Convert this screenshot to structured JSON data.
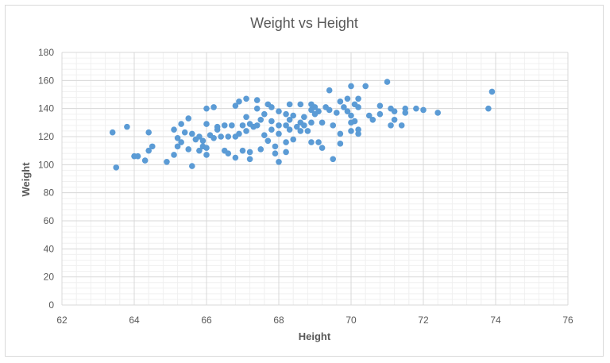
{
  "chart_data": {
    "type": "scatter",
    "title": "Weight vs Height",
    "xlabel": "Height",
    "ylabel": "Weight",
    "xlim": [
      62,
      76
    ],
    "ylim": [
      0,
      180
    ],
    "x_ticks": [
      62,
      64,
      66,
      68,
      70,
      72,
      74,
      76
    ],
    "y_ticks": [
      0,
      20,
      40,
      60,
      80,
      100,
      120,
      140,
      160,
      180
    ],
    "grid": "major and minor",
    "legend": "none",
    "marker_color": "#5b9bd5",
    "points": [
      [
        63.4,
        123
      ],
      [
        63.5,
        98
      ],
      [
        63.8,
        127
      ],
      [
        64.0,
        106
      ],
      [
        64.1,
        106
      ],
      [
        64.3,
        103
      ],
      [
        64.4,
        110
      ],
      [
        64.4,
        123
      ],
      [
        64.5,
        113
      ],
      [
        64.9,
        102
      ],
      [
        65.1,
        125
      ],
      [
        65.1,
        107
      ],
      [
        65.2,
        113
      ],
      [
        65.2,
        119
      ],
      [
        65.3,
        129
      ],
      [
        65.3,
        116
      ],
      [
        65.4,
        123
      ],
      [
        65.5,
        133
      ],
      [
        65.5,
        111
      ],
      [
        65.6,
        99
      ],
      [
        65.6,
        122
      ],
      [
        65.7,
        118
      ],
      [
        65.8,
        120
      ],
      [
        65.8,
        110
      ],
      [
        65.9,
        117
      ],
      [
        65.9,
        113
      ],
      [
        66.0,
        140
      ],
      [
        66.0,
        129
      ],
      [
        66.0,
        107
      ],
      [
        66.0,
        112
      ],
      [
        66.1,
        121
      ],
      [
        66.2,
        141
      ],
      [
        66.2,
        119
      ],
      [
        66.3,
        127
      ],
      [
        66.3,
        125
      ],
      [
        66.4,
        120
      ],
      [
        66.5,
        128
      ],
      [
        66.5,
        110
      ],
      [
        66.6,
        108
      ],
      [
        66.6,
        120
      ],
      [
        66.7,
        128
      ],
      [
        66.8,
        142
      ],
      [
        66.8,
        120
      ],
      [
        66.8,
        105
      ],
      [
        66.9,
        145
      ],
      [
        66.9,
        122
      ],
      [
        67.0,
        128
      ],
      [
        67.0,
        110
      ],
      [
        67.1,
        147
      ],
      [
        67.1,
        134
      ],
      [
        67.1,
        124
      ],
      [
        67.2,
        129
      ],
      [
        67.2,
        109
      ],
      [
        67.2,
        104
      ],
      [
        67.3,
        127
      ],
      [
        67.4,
        146
      ],
      [
        67.4,
        140
      ],
      [
        67.4,
        128
      ],
      [
        67.5,
        132
      ],
      [
        67.5,
        111
      ],
      [
        67.6,
        136
      ],
      [
        67.6,
        121
      ],
      [
        67.7,
        143
      ],
      [
        67.7,
        117
      ],
      [
        67.8,
        141
      ],
      [
        67.8,
        131
      ],
      [
        67.8,
        125
      ],
      [
        67.9,
        113
      ],
      [
        67.9,
        108
      ],
      [
        68.0,
        138
      ],
      [
        68.0,
        128
      ],
      [
        68.0,
        122
      ],
      [
        68.0,
        102
      ],
      [
        68.2,
        136
      ],
      [
        68.2,
        128
      ],
      [
        68.2,
        116
      ],
      [
        68.2,
        109
      ],
      [
        68.3,
        143
      ],
      [
        68.3,
        132
      ],
      [
        68.3,
        125
      ],
      [
        68.4,
        135
      ],
      [
        68.4,
        118
      ],
      [
        68.5,
        127
      ],
      [
        68.6,
        143
      ],
      [
        68.6,
        130
      ],
      [
        68.6,
        124
      ],
      [
        68.7,
        134
      ],
      [
        68.7,
        128
      ],
      [
        68.8,
        124
      ],
      [
        68.9,
        143
      ],
      [
        68.9,
        139
      ],
      [
        68.9,
        130
      ],
      [
        68.9,
        116
      ],
      [
        69.0,
        141
      ],
      [
        69.0,
        136
      ],
      [
        69.1,
        138
      ],
      [
        69.1,
        116
      ],
      [
        69.2,
        130
      ],
      [
        69.2,
        112
      ],
      [
        69.3,
        141
      ],
      [
        69.4,
        153
      ],
      [
        69.4,
        139
      ],
      [
        69.5,
        128
      ],
      [
        69.5,
        104
      ],
      [
        69.6,
        137
      ],
      [
        69.7,
        145
      ],
      [
        69.7,
        122
      ],
      [
        69.7,
        115
      ],
      [
        69.8,
        141
      ],
      [
        69.9,
        147
      ],
      [
        69.9,
        138
      ],
      [
        70.0,
        156
      ],
      [
        70.0,
        135
      ],
      [
        70.0,
        130
      ],
      [
        70.0,
        124
      ],
      [
        70.1,
        143
      ],
      [
        70.1,
        131
      ],
      [
        70.2,
        147
      ],
      [
        70.2,
        141
      ],
      [
        70.2,
        125
      ],
      [
        70.2,
        122
      ],
      [
        70.4,
        156
      ],
      [
        70.5,
        135
      ],
      [
        70.6,
        132
      ],
      [
        70.8,
        142
      ],
      [
        70.8,
        136
      ],
      [
        71.0,
        159
      ],
      [
        71.1,
        140
      ],
      [
        71.1,
        128
      ],
      [
        71.2,
        138
      ],
      [
        71.2,
        132
      ],
      [
        71.4,
        128
      ],
      [
        71.5,
        140
      ],
      [
        71.5,
        137
      ],
      [
        71.8,
        140
      ],
      [
        72.0,
        139
      ],
      [
        72.4,
        137
      ],
      [
        73.8,
        140
      ],
      [
        73.9,
        152
      ]
    ]
  }
}
